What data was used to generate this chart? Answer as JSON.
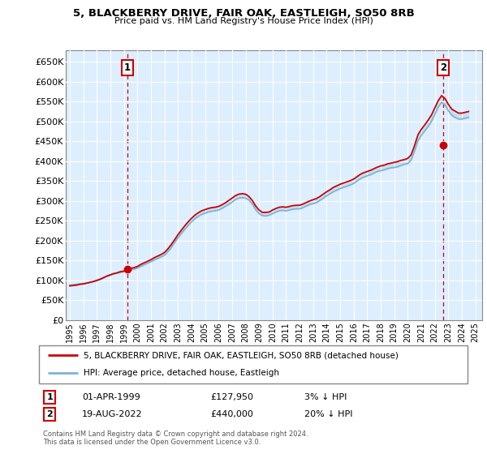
{
  "title": "5, BLACKBERRY DRIVE, FAIR OAK, EASTLEIGH, SO50 8RB",
  "subtitle": "Price paid vs. HM Land Registry's House Price Index (HPI)",
  "ylim": [
    0,
    680000
  ],
  "xlim_start": 1994.7,
  "xlim_end": 2025.5,
  "yticks": [
    0,
    50000,
    100000,
    150000,
    200000,
    250000,
    300000,
    350000,
    400000,
    450000,
    500000,
    550000,
    600000,
    650000
  ],
  "ytick_labels": [
    "£0",
    "£50K",
    "£100K",
    "£150K",
    "£200K",
    "£250K",
    "£300K",
    "£350K",
    "£400K",
    "£450K",
    "£500K",
    "£550K",
    "£600K",
    "£650K"
  ],
  "plot_bg_color": "#ddeeff",
  "grid_color": "#ffffff",
  "line_color_price": "#cc0000",
  "line_color_hpi": "#7fb3d3",
  "point1_year": 1999.25,
  "point1_price": 127950,
  "point2_year": 2022.63,
  "point2_price": 440000,
  "marker1_label": "1",
  "marker2_label": "2",
  "legend_label1": "5, BLACKBERRY DRIVE, FAIR OAK, EASTLEIGH, SO50 8RB (detached house)",
  "legend_label2": "HPI: Average price, detached house, Eastleigh",
  "annotation1_date": "01-APR-1999",
  "annotation1_price": "£127,950",
  "annotation1_hpi": "3% ↓ HPI",
  "annotation2_date": "19-AUG-2022",
  "annotation2_price": "£440,000",
  "annotation2_hpi": "20% ↓ HPI",
  "footer": "Contains HM Land Registry data © Crown copyright and database right 2024.\nThis data is licensed under the Open Government Licence v3.0.",
  "hpi_x": [
    1995.0,
    1995.25,
    1995.5,
    1995.75,
    1996.0,
    1996.25,
    1996.5,
    1996.75,
    1997.0,
    1997.25,
    1997.5,
    1997.75,
    1998.0,
    1998.25,
    1998.5,
    1998.75,
    1999.0,
    1999.25,
    1999.5,
    1999.75,
    2000.0,
    2000.25,
    2000.5,
    2000.75,
    2001.0,
    2001.25,
    2001.5,
    2001.75,
    2002.0,
    2002.25,
    2002.5,
    2002.75,
    2003.0,
    2003.25,
    2003.5,
    2003.75,
    2004.0,
    2004.25,
    2004.5,
    2004.75,
    2005.0,
    2005.25,
    2005.5,
    2005.75,
    2006.0,
    2006.25,
    2006.5,
    2006.75,
    2007.0,
    2007.25,
    2007.5,
    2007.75,
    2008.0,
    2008.25,
    2008.5,
    2008.75,
    2009.0,
    2009.25,
    2009.5,
    2009.75,
    2010.0,
    2010.25,
    2010.5,
    2010.75,
    2011.0,
    2011.25,
    2011.5,
    2011.75,
    2012.0,
    2012.25,
    2012.5,
    2012.75,
    2013.0,
    2013.25,
    2013.5,
    2013.75,
    2014.0,
    2014.25,
    2014.5,
    2014.75,
    2015.0,
    2015.25,
    2015.5,
    2015.75,
    2016.0,
    2016.25,
    2016.5,
    2016.75,
    2017.0,
    2017.25,
    2017.5,
    2017.75,
    2018.0,
    2018.25,
    2018.5,
    2018.75,
    2019.0,
    2019.25,
    2019.5,
    2019.75,
    2020.0,
    2020.25,
    2020.5,
    2020.75,
    2021.0,
    2021.25,
    2021.5,
    2021.75,
    2022.0,
    2022.25,
    2022.5,
    2022.75,
    2023.0,
    2023.25,
    2023.5,
    2023.75,
    2024.0,
    2024.25,
    2024.5
  ],
  "hpi_y": [
    88000,
    89000,
    90000,
    91000,
    92000,
    93000,
    95000,
    97000,
    99000,
    102000,
    106000,
    110000,
    113000,
    116000,
    118000,
    120000,
    122000,
    124000,
    126000,
    128000,
    131000,
    135000,
    139000,
    143000,
    147000,
    151000,
    155000,
    159000,
    163000,
    172000,
    182000,
    195000,
    207000,
    218000,
    228000,
    238000,
    247000,
    255000,
    261000,
    266000,
    269000,
    272000,
    274000,
    275000,
    277000,
    281000,
    286000,
    291000,
    297000,
    303000,
    307000,
    308000,
    307000,
    302000,
    292000,
    278000,
    268000,
    263000,
    262000,
    264000,
    268000,
    272000,
    275000,
    276000,
    275000,
    277000,
    279000,
    280000,
    280000,
    283000,
    287000,
    291000,
    293000,
    296000,
    301000,
    307000,
    313000,
    318000,
    323000,
    327000,
    331000,
    334000,
    337000,
    340000,
    344000,
    350000,
    356000,
    360000,
    363000,
    366000,
    370000,
    374000,
    376000,
    378000,
    381000,
    383000,
    384000,
    386000,
    389000,
    392000,
    394000,
    403000,
    425000,
    451000,
    465000,
    476000,
    487000,
    500000,
    518000,
    536000,
    548000,
    542000,
    527000,
    516000,
    510000,
    506000,
    506000,
    508000,
    510000
  ],
  "price_x": [
    1995.0,
    1995.25,
    1995.5,
    1995.75,
    1996.0,
    1996.25,
    1996.5,
    1996.75,
    1997.0,
    1997.25,
    1997.5,
    1997.75,
    1998.0,
    1998.25,
    1998.5,
    1998.75,
    1999.0,
    1999.25,
    1999.5,
    1999.75,
    2000.0,
    2000.25,
    2000.5,
    2000.75,
    2001.0,
    2001.25,
    2001.5,
    2001.75,
    2002.0,
    2002.25,
    2002.5,
    2002.75,
    2003.0,
    2003.25,
    2003.5,
    2003.75,
    2004.0,
    2004.25,
    2004.5,
    2004.75,
    2005.0,
    2005.25,
    2005.5,
    2005.75,
    2006.0,
    2006.25,
    2006.5,
    2006.75,
    2007.0,
    2007.25,
    2007.5,
    2007.75,
    2008.0,
    2008.25,
    2008.5,
    2008.75,
    2009.0,
    2009.25,
    2009.5,
    2009.75,
    2010.0,
    2010.25,
    2010.5,
    2010.75,
    2011.0,
    2011.25,
    2011.5,
    2011.75,
    2012.0,
    2012.25,
    2012.5,
    2012.75,
    2013.0,
    2013.25,
    2013.5,
    2013.75,
    2014.0,
    2014.25,
    2014.5,
    2014.75,
    2015.0,
    2015.25,
    2015.5,
    2015.75,
    2016.0,
    2016.25,
    2016.5,
    2016.75,
    2017.0,
    2017.25,
    2017.5,
    2017.75,
    2018.0,
    2018.25,
    2018.5,
    2018.75,
    2019.0,
    2019.25,
    2019.5,
    2019.75,
    2020.0,
    2020.25,
    2020.5,
    2020.75,
    2021.0,
    2021.25,
    2021.5,
    2021.75,
    2022.0,
    2022.25,
    2022.5,
    2022.75,
    2023.0,
    2023.25,
    2023.5,
    2023.75,
    2024.0,
    2024.25,
    2024.5
  ],
  "price_y": [
    86000,
    87000,
    88000,
    90000,
    91000,
    93000,
    95000,
    97000,
    100000,
    103000,
    107000,
    111000,
    114000,
    117000,
    119000,
    122000,
    123000,
    127950,
    130000,
    132000,
    135000,
    140000,
    144000,
    148000,
    152000,
    157000,
    161000,
    165000,
    170000,
    179000,
    190000,
    202000,
    215000,
    226000,
    237000,
    247000,
    256000,
    264000,
    270000,
    275000,
    278000,
    281000,
    283000,
    284000,
    286000,
    290000,
    295000,
    301000,
    307000,
    313000,
    317000,
    318000,
    317000,
    311000,
    301000,
    287000,
    277000,
    271000,
    271000,
    272000,
    277000,
    281000,
    284000,
    285000,
    284000,
    286000,
    288000,
    289000,
    289000,
    292000,
    296000,
    300000,
    303000,
    306000,
    311000,
    317000,
    323000,
    328000,
    334000,
    338000,
    342000,
    345000,
    348000,
    351000,
    355000,
    361000,
    367000,
    371000,
    374000,
    377000,
    381000,
    385000,
    388000,
    390000,
    393000,
    395000,
    397000,
    399000,
    402000,
    404000,
    407000,
    416000,
    439000,
    466000,
    480000,
    491000,
    503000,
    516000,
    534000,
    552000,
    565000,
    558000,
    543000,
    531000,
    526000,
    521000,
    521000,
    523000,
    525000
  ]
}
